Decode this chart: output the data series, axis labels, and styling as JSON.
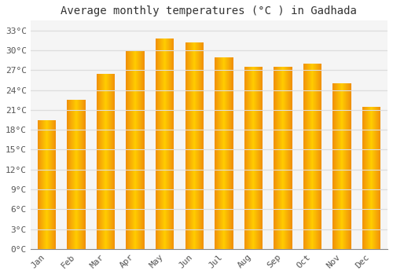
{
  "title": "Average monthly temperatures (°C ) in Gadhada",
  "months": [
    "Jan",
    "Feb",
    "Mar",
    "Apr",
    "May",
    "Jun",
    "Jul",
    "Aug",
    "Sep",
    "Oct",
    "Nov",
    "Dec"
  ],
  "temperatures": [
    19.5,
    22.5,
    26.5,
    30.0,
    31.8,
    31.2,
    29.0,
    27.5,
    27.5,
    28.0,
    25.0,
    21.5
  ],
  "bar_color_center": "#FFCC00",
  "bar_color_edge": "#F0900A",
  "background_color": "#FFFFFF",
  "plot_bg_color": "#F5F5F5",
  "grid_color": "#DDDDDD",
  "yticks": [
    0,
    3,
    6,
    9,
    12,
    15,
    18,
    21,
    24,
    27,
    30,
    33
  ],
  "ylim": [
    0,
    34.5
  ],
  "title_fontsize": 10,
  "tick_fontsize": 8,
  "font_family": "monospace"
}
